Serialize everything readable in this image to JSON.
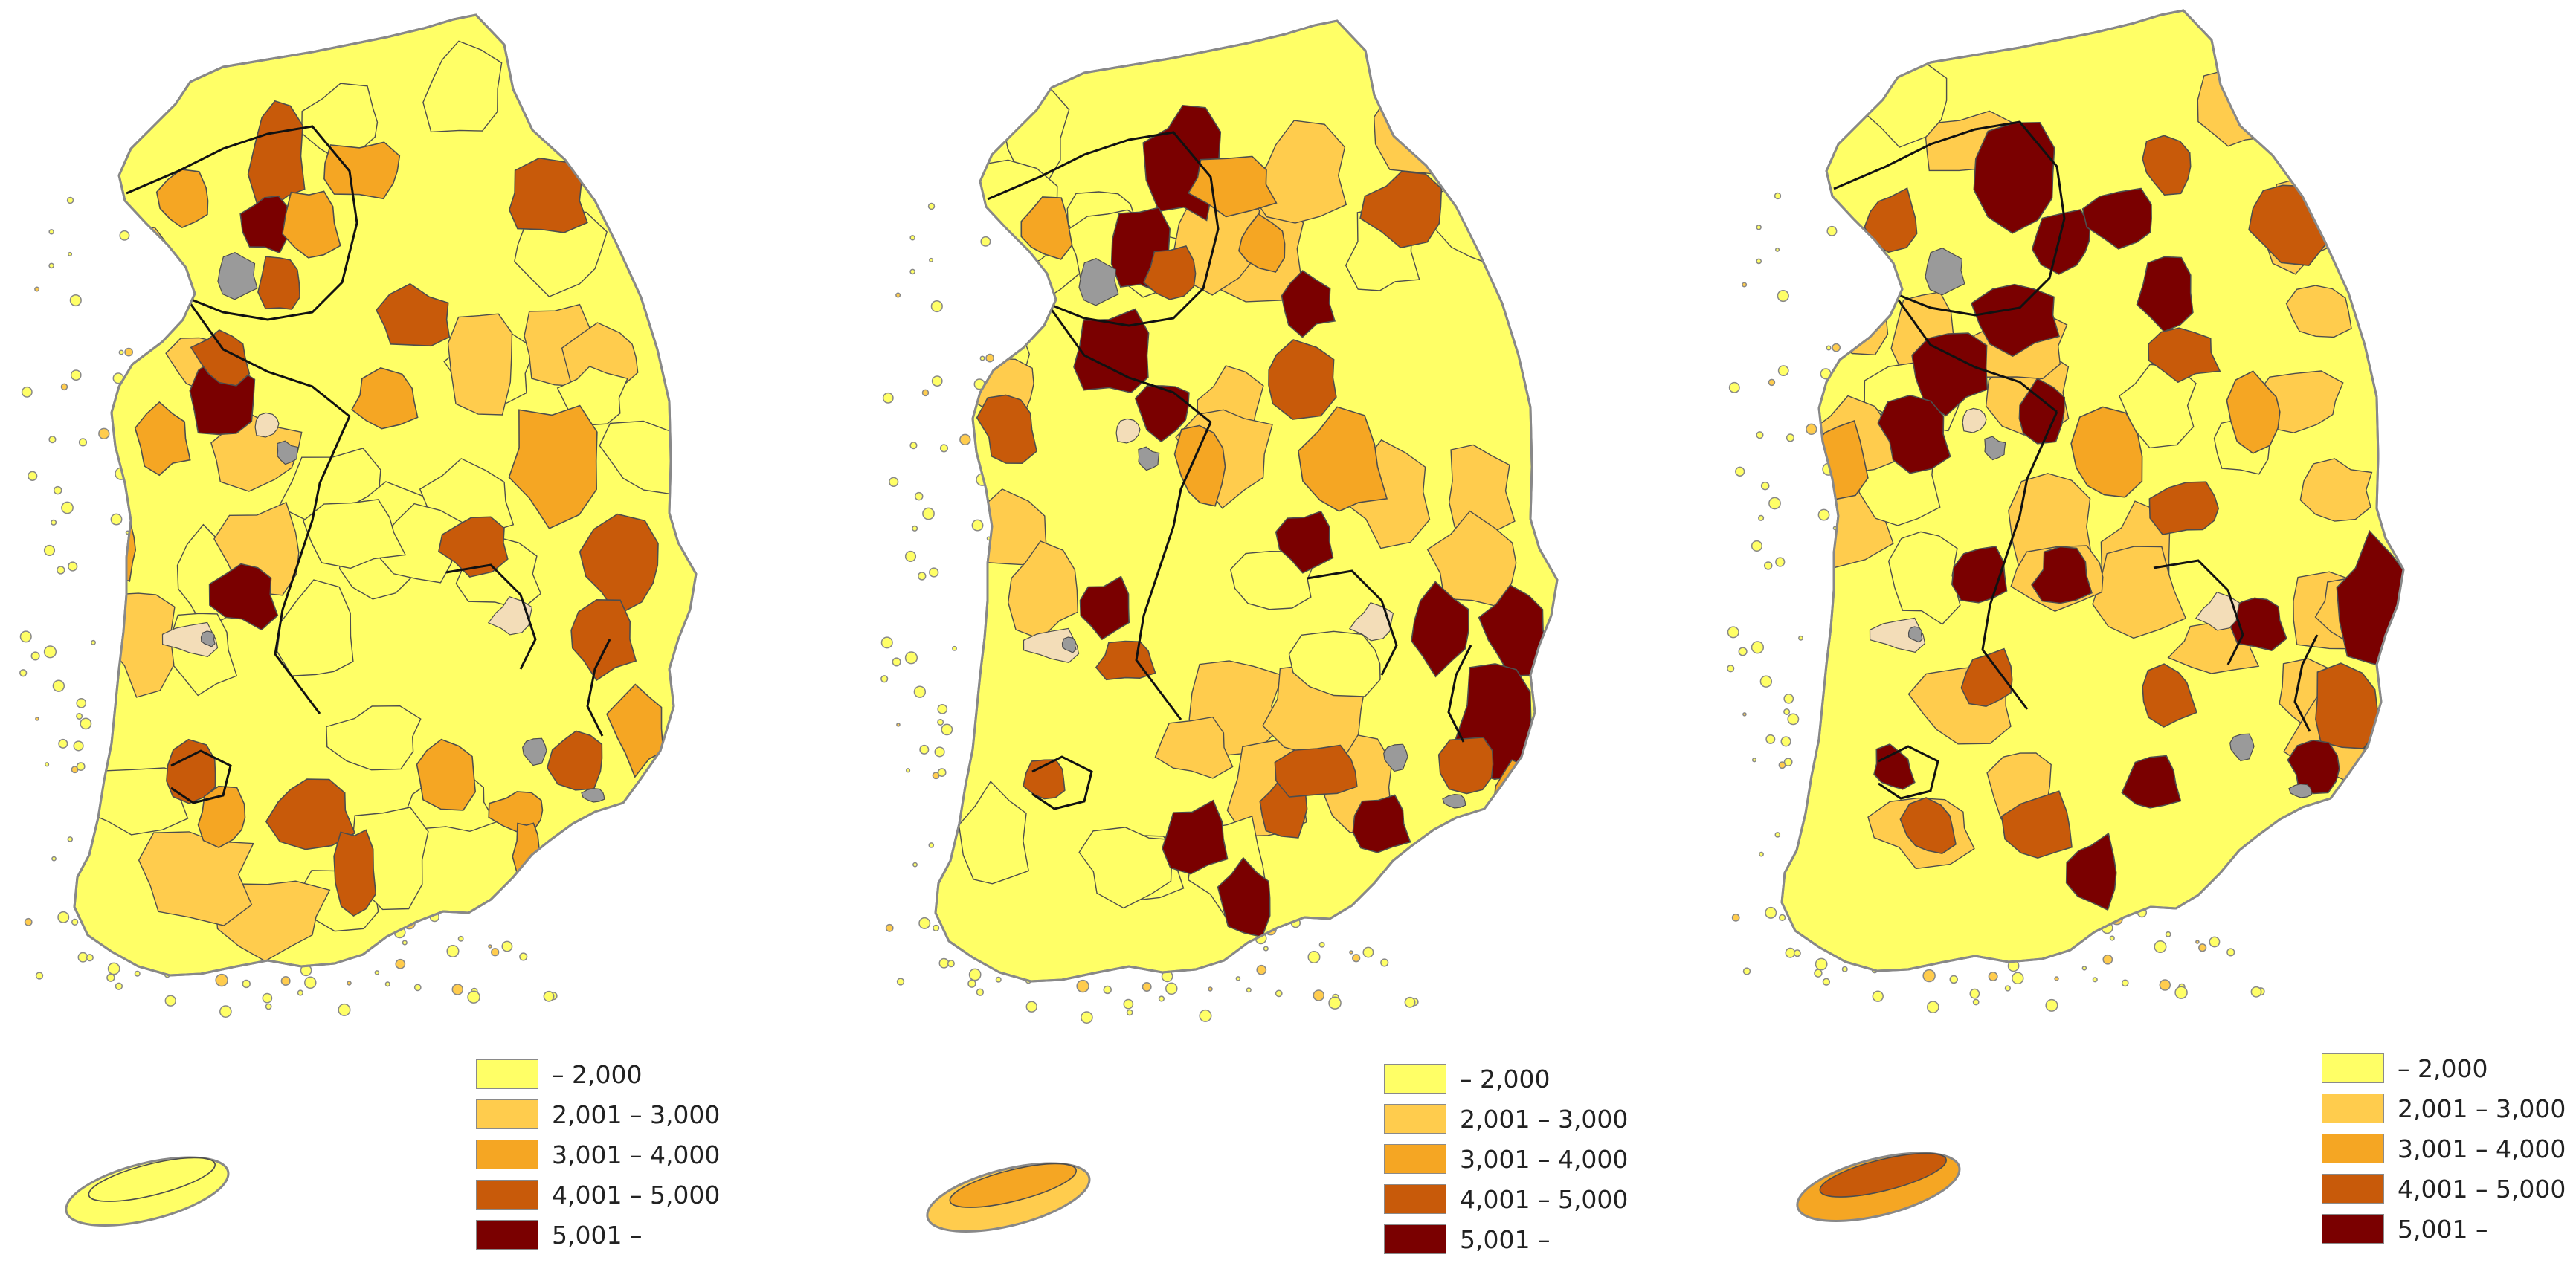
{
  "legend_classes": [
    {
      "label": "– 2,000",
      "color": "#FFFF66"
    },
    {
      "label": "2,001 – 3,000",
      "color": "#FFCC4D"
    },
    {
      "label": "3,001 – 4,000",
      "color": "#F5A623"
    },
    {
      "label": "4,001 – 5,000",
      "color": "#C85A0A"
    },
    {
      "label": "5,001 –",
      "color": "#7A0000"
    }
  ],
  "colors": {
    "region_stroke": "#4d4d4d",
    "province_stroke": "#111111",
    "urban_gray": "#9a9a9a",
    "urban_pale": "#F3DDB8",
    "coast": "#888888"
  },
  "panels": [
    {
      "id": "map-1",
      "jeju_class": 0
    },
    {
      "id": "map-2",
      "jeju_class": 2
    },
    {
      "id": "map-3",
      "jeju_class": 3
    }
  ]
}
